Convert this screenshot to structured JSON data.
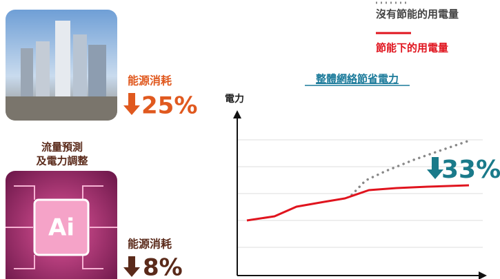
{
  "legend": {
    "without_saving": "沒有節能的用電量",
    "with_saving": "節能下的用電量"
  },
  "chart": {
    "title": "整體網絡節省電力",
    "y_label": "電力",
    "saving": "33%"
  },
  "building": {
    "label": "能源消耗",
    "value": "25%"
  },
  "ai": {
    "caption": [
      "流量預測",
      "及電力調整"
    ],
    "chip": "Ai",
    "label": "能源消耗",
    "value": "8%"
  }
}
